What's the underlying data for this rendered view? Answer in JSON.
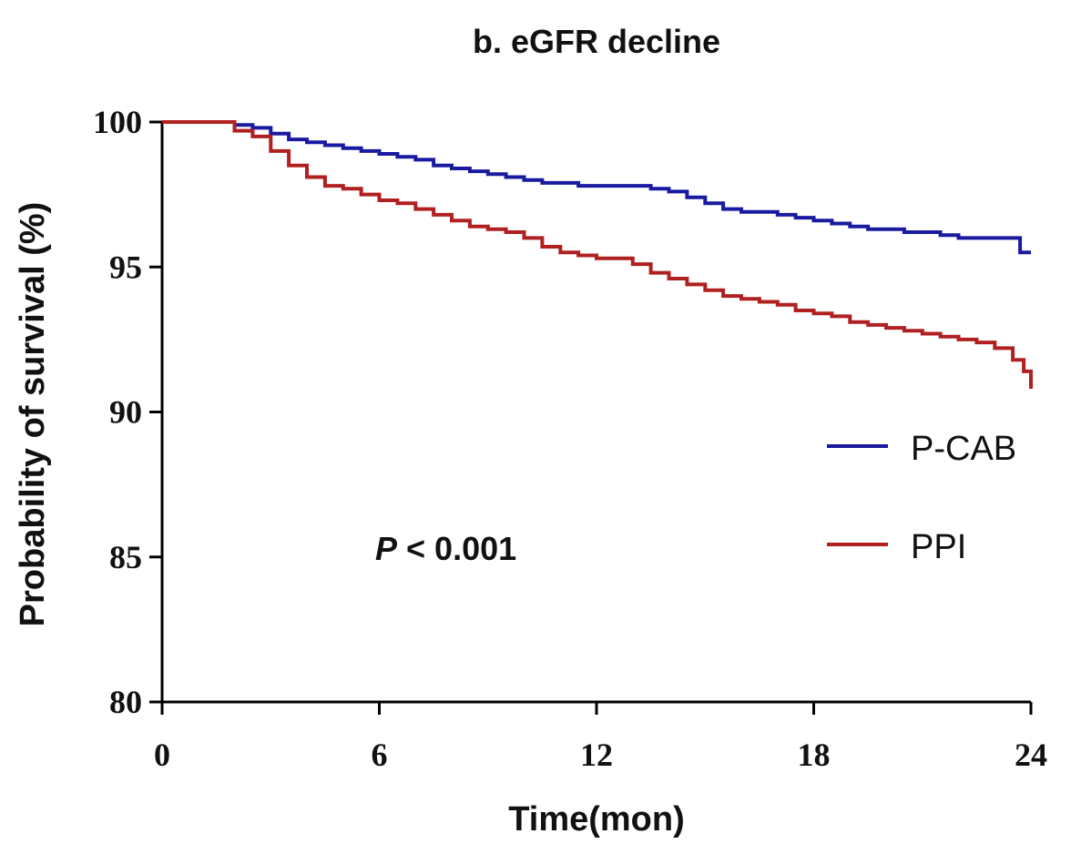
{
  "chart_data": {
    "type": "line",
    "title": "b. eGFR decline",
    "xlabel": "Time(mon)",
    "ylabel": "Probability of survival (%)",
    "xlim": [
      0,
      24
    ],
    "ylim": [
      80,
      100
    ],
    "xticks": [
      0,
      6,
      12,
      18,
      24
    ],
    "yticks": [
      80,
      85,
      90,
      95,
      100
    ],
    "grid": false,
    "legend_position": "right",
    "annotation": {
      "prefix": "P",
      "text": " < 0.001"
    },
    "series": [
      {
        "name": "P-CAB",
        "color": "#1a1aa0",
        "x": [
          0,
          1.5,
          2.0,
          2.5,
          3.0,
          3.5,
          4.0,
          4.5,
          5.0,
          5.5,
          6.0,
          6.5,
          7.0,
          7.5,
          8.0,
          8.5,
          9.0,
          9.5,
          10.0,
          10.5,
          11.0,
          11.5,
          12.0,
          12.5,
          13.0,
          13.5,
          14.0,
          14.5,
          15.0,
          15.5,
          16.0,
          16.5,
          17.0,
          17.5,
          18.0,
          18.5,
          19.0,
          19.5,
          20.0,
          20.5,
          21.0,
          21.5,
          22.0,
          22.5,
          23.0,
          23.5,
          23.7,
          24.0
        ],
        "y": [
          100,
          100,
          99.9,
          99.8,
          99.6,
          99.4,
          99.3,
          99.2,
          99.1,
          99.0,
          98.9,
          98.8,
          98.7,
          98.5,
          98.4,
          98.3,
          98.2,
          98.1,
          98.0,
          97.9,
          97.9,
          97.8,
          97.8,
          97.8,
          97.8,
          97.7,
          97.6,
          97.4,
          97.2,
          97.0,
          96.9,
          96.9,
          96.8,
          96.7,
          96.6,
          96.5,
          96.4,
          96.3,
          96.3,
          96.2,
          96.2,
          96.1,
          96.0,
          96.0,
          96.0,
          96.0,
          95.5,
          95.5
        ]
      },
      {
        "name": "PPI",
        "color": "#b02020",
        "x": [
          0,
          1.5,
          2.0,
          2.5,
          3.0,
          3.5,
          4.0,
          4.5,
          5.0,
          5.5,
          6.0,
          6.5,
          7.0,
          7.5,
          8.0,
          8.5,
          9.0,
          9.5,
          10.0,
          10.5,
          11.0,
          11.5,
          12.0,
          12.5,
          13.0,
          13.5,
          14.0,
          14.5,
          15.0,
          15.5,
          16.0,
          16.5,
          17.0,
          17.5,
          18.0,
          18.5,
          19.0,
          19.5,
          20.0,
          20.5,
          21.0,
          21.5,
          22.0,
          22.5,
          23.0,
          23.5,
          23.8,
          24.0
        ],
        "y": [
          100,
          100,
          99.7,
          99.5,
          99.0,
          98.5,
          98.1,
          97.8,
          97.7,
          97.5,
          97.3,
          97.2,
          97.0,
          96.8,
          96.6,
          96.4,
          96.3,
          96.2,
          96.0,
          95.7,
          95.5,
          95.4,
          95.3,
          95.3,
          95.1,
          94.8,
          94.6,
          94.4,
          94.2,
          94.0,
          93.9,
          93.8,
          93.7,
          93.5,
          93.4,
          93.3,
          93.1,
          93.0,
          92.9,
          92.8,
          92.7,
          92.6,
          92.5,
          92.4,
          92.2,
          91.8,
          91.4,
          90.8
        ]
      }
    ]
  }
}
